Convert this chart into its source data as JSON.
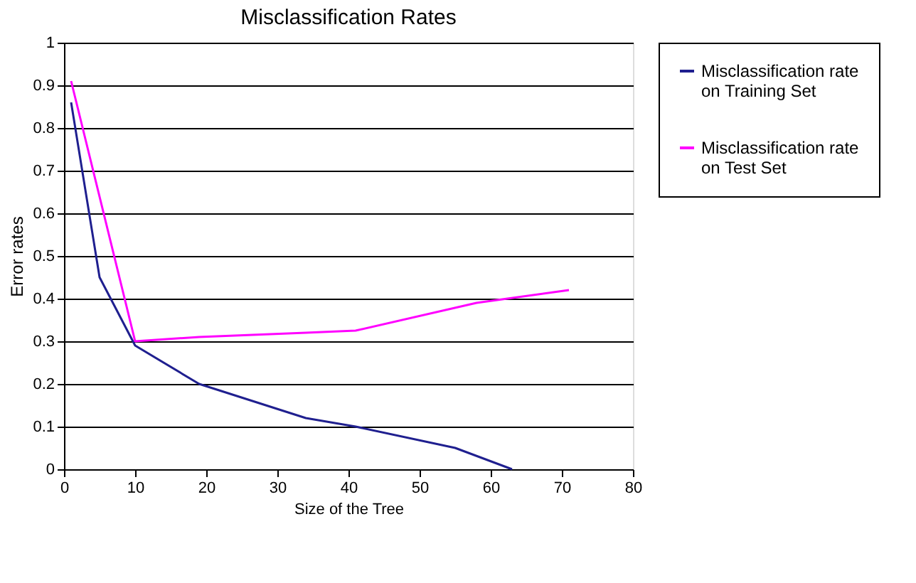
{
  "chart_data": {
    "type": "line",
    "title": "Misclassification Rates",
    "xlabel": "Size of the Tree",
    "ylabel": "Error rates",
    "xlim": [
      0,
      80
    ],
    "xticks": [
      0,
      10,
      20,
      30,
      40,
      50,
      60,
      70,
      80
    ],
    "ylim": [
      0,
      1
    ],
    "yticks": [
      0,
      0.1,
      0.2,
      0.3,
      0.4,
      0.5,
      0.6,
      0.7,
      0.8,
      0.9,
      1
    ],
    "grid": "y",
    "legend": "right",
    "marker": "none",
    "line_style": "solid",
    "series": [
      {
        "name": "Misclassification rate on Training Set",
        "color": "#1f1f8f",
        "x": [
          1,
          5,
          10,
          19,
          34,
          41,
          55,
          63
        ],
        "values": [
          0.86,
          0.45,
          0.29,
          0.2,
          0.12,
          0.1,
          0.05,
          0
        ]
      },
      {
        "name": "Misclassification rate on Test Set",
        "color": "#ff00ff",
        "x": [
          1,
          10,
          19,
          34,
          41,
          58,
          71
        ],
        "values": [
          0.91,
          0.3,
          0.31,
          0.32,
          0.325,
          0.39,
          0.42
        ]
      }
    ]
  }
}
